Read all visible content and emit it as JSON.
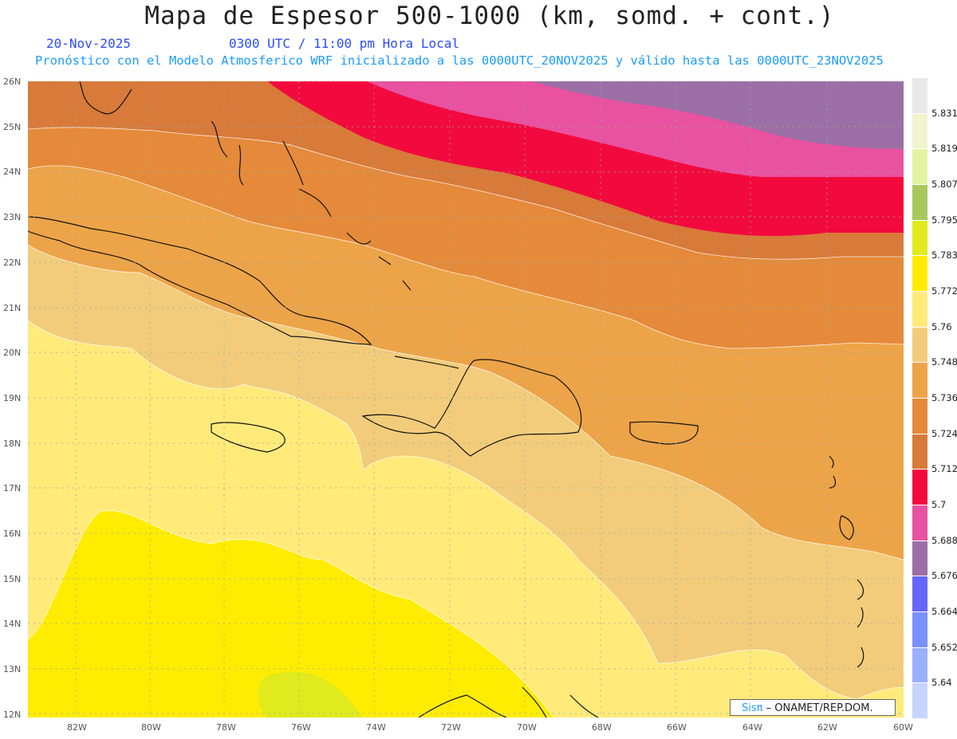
{
  "title": "Mapa de Espesor 500-1000 (km, somd. + cont.)",
  "date": "20-Nov-2025",
  "time_line": "0300 UTC / 11:00 pm Hora Local",
  "description": "Pronóstico con el Modelo Atmosferico WRF inicializado a las 0000UTC_20NOV2025 y válido hasta las  0000UTC_23NOV2025",
  "lat_labels": [
    "26N",
    "25N",
    "24N",
    "23N",
    "22N",
    "21N",
    "20N",
    "19N",
    "18N",
    "17N",
    "16N",
    "15N",
    "14N",
    "13N",
    "12N"
  ],
  "lon_labels": [
    "82W",
    "80W",
    "78W",
    "76W",
    "74W",
    "72W",
    "70W",
    "68W",
    "66W",
    "64W",
    "62W",
    "60W"
  ],
  "colorbar": {
    "labels": [
      "5.831",
      "5.819",
      "5.807",
      "5.795",
      "5.783",
      "5.772",
      "5.76",
      "5.748",
      "5.736",
      "5.724",
      "5.712",
      "5.7",
      "5.688",
      "5.676",
      "5.664",
      "5.652",
      "5.64"
    ],
    "colors": [
      "#e8e8e8",
      "#f0f5cf",
      "#e3f3a2",
      "#a6c95a",
      "#e0ea1c",
      "#ffec00",
      "#ffea7a",
      "#f2cc7a",
      "#eda448",
      "#e58a3a",
      "#d87a3a",
      "#f20a3e",
      "#e852a0",
      "#9b6fa6",
      "#6666ff",
      "#7a90ff",
      "#99b0ff",
      "#c8d4ff"
    ]
  },
  "credit": {
    "logo": "Sisπ",
    "text": "– ONAMET/REP.DOM."
  }
}
